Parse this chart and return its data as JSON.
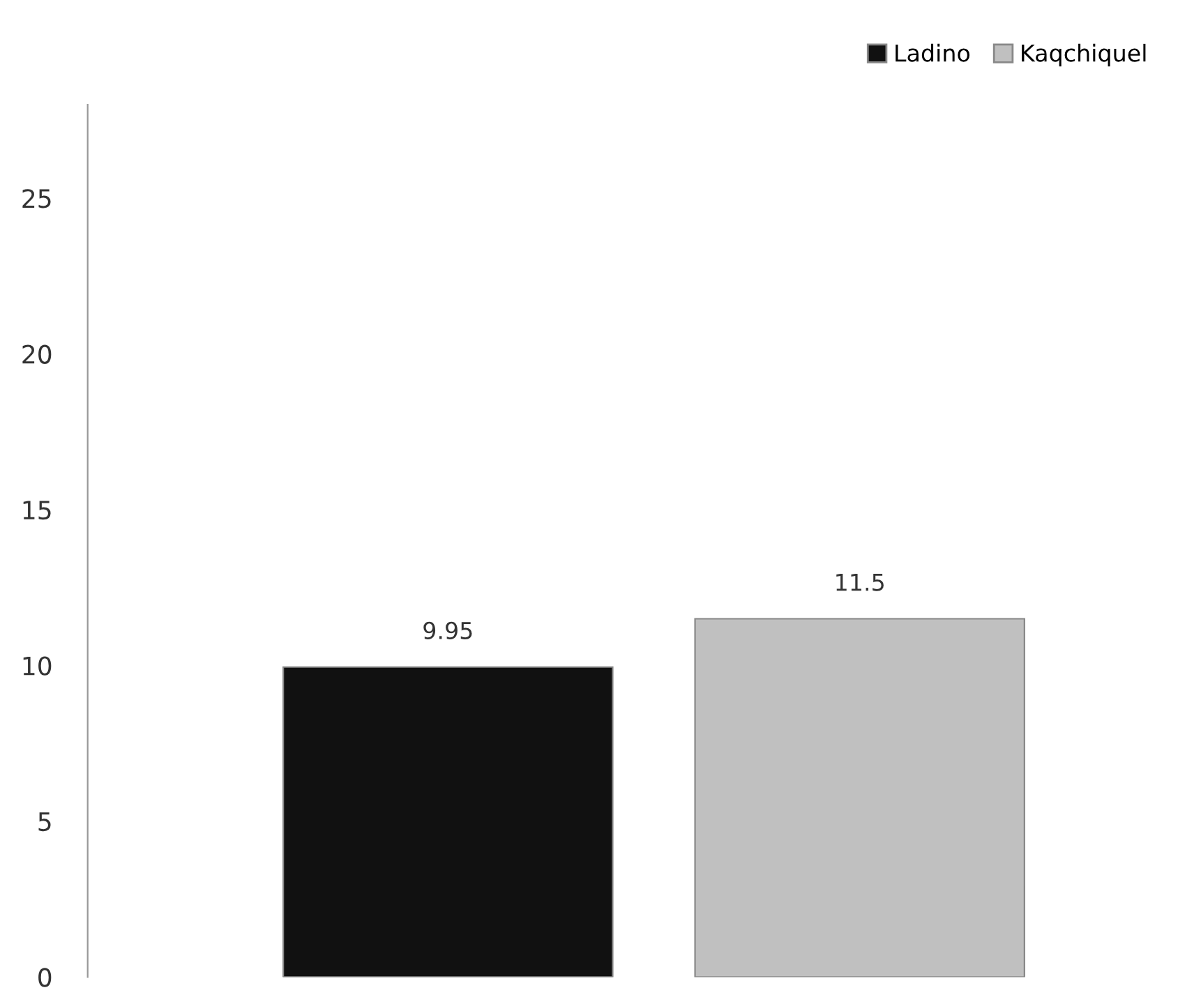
{
  "chart_data": {
    "type": "bar",
    "categories": [
      null
    ],
    "series": [
      {
        "name": "Ladino",
        "color": "#111111",
        "values": [
          9.95
        ]
      },
      {
        "name": "Kaqchiquel",
        "color": "#c0c0c0",
        "values": [
          11.5
        ]
      }
    ],
    "ylim": [
      0,
      28
    ],
    "yticks": [
      0,
      5,
      10,
      15,
      20,
      25
    ],
    "data_labels": true,
    "grid": false,
    "legend": "top right"
  }
}
